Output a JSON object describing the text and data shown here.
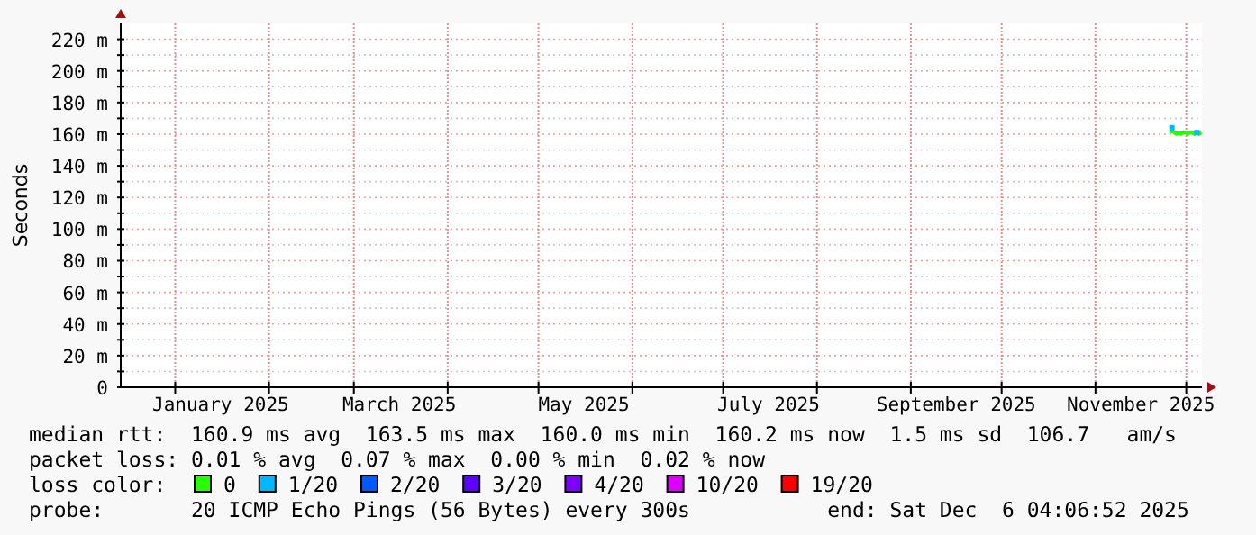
{
  "chart_data": {
    "type": "line",
    "ylabel": "Seconds",
    "x": [
      "2025-11-25T12:00",
      "2025-11-26T06:00",
      "2025-11-27T00:00",
      "2025-11-27T18:00",
      "2025-11-28T12:00",
      "2025-11-29T06:00",
      "2025-11-30T00:00",
      "2025-11-30T18:00",
      "2025-12-01T12:00",
      "2025-12-02T06:00",
      "2025-12-03T00:00",
      "2025-12-03T18:00",
      "2025-12-04T12:00",
      "2025-12-05T06:00",
      "2025-12-06T00:00"
    ],
    "series": [
      {
        "name": "0",
        "color": "#26ff00",
        "values": [
          161,
          162,
          161,
          160,
          161,
          160,
          161,
          161,
          160,
          161,
          161,
          160,
          161,
          160,
          161
        ]
      },
      {
        "name": "1/20",
        "color": "#00b8ff",
        "type": "scatter",
        "values": [
          null,
          164,
          null,
          null,
          null,
          null,
          null,
          null,
          null,
          null,
          null,
          null,
          161,
          null,
          null
        ]
      },
      {
        "name": "2/20",
        "color": "#0059ff",
        "type": "scatter",
        "values": [
          null,
          null,
          null,
          null,
          null,
          null,
          null,
          null,
          null,
          null,
          null,
          null,
          null,
          null,
          null
        ]
      },
      {
        "name": "3/20",
        "color": "#5e00ff",
        "type": "scatter",
        "values": [
          null,
          null,
          null,
          null,
          null,
          null,
          null,
          null,
          null,
          null,
          null,
          null,
          null,
          null,
          null
        ]
      },
      {
        "name": "4/20",
        "color": "#7e00ff",
        "type": "scatter",
        "values": [
          null,
          null,
          null,
          null,
          null,
          null,
          null,
          null,
          null,
          null,
          null,
          null,
          null,
          null,
          null
        ]
      },
      {
        "name": "10/20",
        "color": "#dd00ff",
        "type": "scatter",
        "values": [
          null,
          null,
          null,
          null,
          null,
          null,
          null,
          null,
          null,
          null,
          null,
          null,
          null,
          null,
          null
        ]
      },
      {
        "name": "19/20",
        "color": "#ff0000",
        "type": "scatter",
        "values": [
          null,
          null,
          null,
          null,
          null,
          null,
          null,
          null,
          null,
          null,
          null,
          null,
          null,
          null,
          null
        ]
      }
    ],
    "xlim": [
      "2024-12-14",
      "2025-12-06T04:06"
    ],
    "xticks": [
      {
        "value": "2025-01-01",
        "label": null
      },
      {
        "value": "2025-01-16",
        "label": "January 2025"
      },
      {
        "value": "2025-02-01",
        "label": null
      },
      {
        "value": "2025-03-01",
        "label": null
      },
      {
        "value": "2025-03-16",
        "label": "March 2025"
      },
      {
        "value": "2025-04-01",
        "label": null
      },
      {
        "value": "2025-05-01",
        "label": null
      },
      {
        "value": "2025-05-16",
        "label": "May 2025"
      },
      {
        "value": "2025-06-01",
        "label": null
      },
      {
        "value": "2025-07-01",
        "label": null
      },
      {
        "value": "2025-07-16",
        "label": "July 2025"
      },
      {
        "value": "2025-08-01",
        "label": null
      },
      {
        "value": "2025-09-01",
        "label": null
      },
      {
        "value": "2025-09-16",
        "label": "September 2025"
      },
      {
        "value": "2025-10-01",
        "label": null
      },
      {
        "value": "2025-11-01",
        "label": null
      },
      {
        "value": "2025-11-16",
        "label": "November 2025"
      },
      {
        "value": "2025-12-01",
        "label": null
      }
    ],
    "ylim": [
      0,
      230
    ],
    "yticks": [
      0,
      {
        "value": 10,
        "label": null
      },
      {
        "value": 20,
        "label": "20 m"
      },
      {
        "value": 30,
        "label": null
      },
      {
        "value": 40,
        "label": "40 m"
      },
      {
        "value": 50,
        "label": null
      },
      {
        "value": 60,
        "label": "60 m"
      },
      {
        "value": 70,
        "label": null
      },
      {
        "value": 80,
        "label": "80 m"
      },
      {
        "value": 90,
        "label": null
      },
      {
        "value": 100,
        "label": "100 m"
      },
      {
        "value": 110,
        "label": null
      },
      {
        "value": 120,
        "label": "120 m"
      },
      {
        "value": 130,
        "label": null
      },
      {
        "value": 140,
        "label": "140 m"
      },
      {
        "value": 150,
        "label": null
      },
      {
        "value": 160,
        "label": "160 m"
      },
      {
        "value": 170,
        "label": null
      },
      {
        "value": 180,
        "label": "180 m"
      },
      {
        "value": 190,
        "label": null
      },
      {
        "value": 200,
        "label": "200 m"
      },
      {
        "value": 210,
        "label": null
      },
      {
        "value": 220,
        "label": "220 m"
      }
    ],
    "grid": true,
    "legend": "bottom",
    "legend_title": "loss color:",
    "annotations": [
      "median rtt:  160.9 ms avg  163.5 ms max  160.0 ms min  160.2 ms now  1.5 ms sd  106.7   am/s",
      "packet loss: 0.01 % avg  0.07 % max  0.00 % min  0.02 % now",
      "probe:       20 ICMP Echo Pings (56 Bytes) every 300s           end: Sat Dec  6 04:06:52 2025"
    ]
  }
}
